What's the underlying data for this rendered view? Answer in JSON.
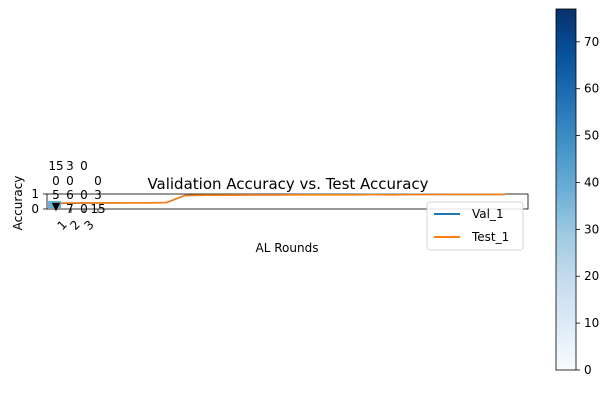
{
  "chart_data": {
    "type": "line",
    "title": "Validation Accuracy vs. Test Accuracy",
    "xlabel": "AL Rounds",
    "ylabel": "Accuracy",
    "yticks": [
      "0",
      "1"
    ],
    "xticks": [
      "1",
      "2",
      "3"
    ],
    "ylim": [
      0,
      1
    ],
    "legend_position": "right",
    "rounds": [
      0,
      1,
      2,
      3,
      4,
      5,
      6,
      7,
      8,
      9,
      10,
      11,
      12,
      13,
      14,
      15,
      16,
      17,
      18,
      19,
      20,
      21,
      22,
      23,
      24
    ],
    "series": [
      {
        "name": "Val_1",
        "color": "#1f77b4",
        "values": [
          0.38,
          0.39,
          0.4,
          0.4,
          0.41,
          0.41,
          0.42,
          0.9,
          0.92,
          0.93,
          0.94,
          0.95,
          0.95,
          0.96,
          0.97,
          0.97,
          0.97,
          0.98,
          0.98,
          0.98,
          0.98,
          0.98,
          0.98,
          0.98,
          0.98
        ]
      },
      {
        "name": "Test_1",
        "color": "#ff7f0e",
        "values": [
          0.4,
          0.4,
          0.41,
          0.41,
          0.41,
          0.41,
          0.42,
          0.9,
          0.92,
          0.92,
          0.93,
          0.94,
          0.94,
          0.95,
          0.95,
          0.95,
          0.95,
          0.96,
          0.95,
          0.96,
          0.96,
          0.97,
          0.97,
          0.97,
          0.97
        ]
      }
    ],
    "inset_heatmap": {
      "marker": "▼",
      "cell_labels": [
        {
          "text": "15",
          "row": 0,
          "col": 0
        },
        {
          "text": "3",
          "row": 0,
          "col": 1
        },
        {
          "text": "0",
          "row": 0,
          "col": 2
        },
        {
          "text": "0",
          "row": 1,
          "col": 0
        },
        {
          "text": "0",
          "row": 1,
          "col": 1
        },
        {
          "text": "0",
          "row": 1,
          "col": 3
        },
        {
          "text": "5",
          "row": 2,
          "col": 0
        },
        {
          "text": "6",
          "row": 2,
          "col": 1
        },
        {
          "text": "0",
          "row": 2,
          "col": 2
        },
        {
          "text": "3",
          "row": 2,
          "col": 3
        },
        {
          "text": "7",
          "row": 3,
          "col": 1
        },
        {
          "text": "0",
          "row": 3,
          "col": 2
        },
        {
          "text": "15",
          "row": 3,
          "col": 3
        }
      ]
    },
    "colorbar": {
      "colormap": "Blues",
      "ticks": [
        0,
        10,
        20,
        30,
        40,
        50,
        60,
        70
      ],
      "range": [
        0,
        77
      ]
    }
  }
}
